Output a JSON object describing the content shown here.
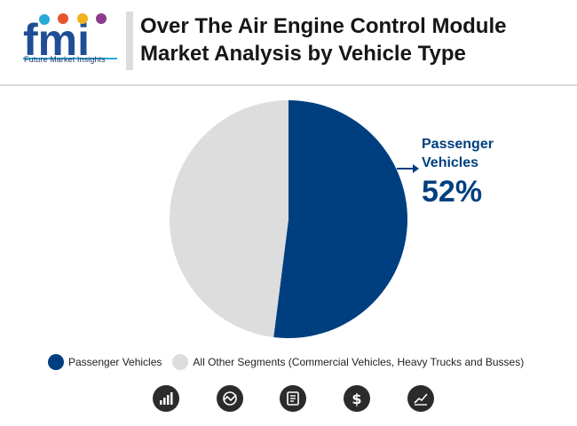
{
  "brand": {
    "logo_text": "fmi",
    "logo_subtitle": "Future Market Insights"
  },
  "header": {
    "title": "Over The Air Engine Control Module Market Analysis by Vehicle Type"
  },
  "colors": {
    "primary": "#003f7f",
    "secondary": "#dddddd"
  },
  "chart_data": {
    "type": "pie",
    "title": "Over The Air Engine Control Module Market Analysis by Vehicle Type",
    "slices": [
      {
        "label": "Passenger Vehicles",
        "value": 52,
        "color": "#003f7f"
      },
      {
        "label": "All Other Segments (Commercial Vehicles, Heavy Trucks and Busses)",
        "value": 48,
        "color": "#dddddd"
      }
    ],
    "annotation": {
      "line1": "Passenger",
      "line2": "Vehicles",
      "value": "52%"
    },
    "legend": [
      {
        "label": "Passenger Vehicles",
        "color": "#003f7f"
      },
      {
        "label": "All Other Segments (Commercial Vehicles, Heavy Trucks and Busses)",
        "color": "#dddddd"
      }
    ],
    "legend_position": "bottom"
  },
  "footer_icons": [
    "bar-chart-icon",
    "globe-chart-icon",
    "report-icon",
    "dollar-icon",
    "trend-chart-icon"
  ]
}
